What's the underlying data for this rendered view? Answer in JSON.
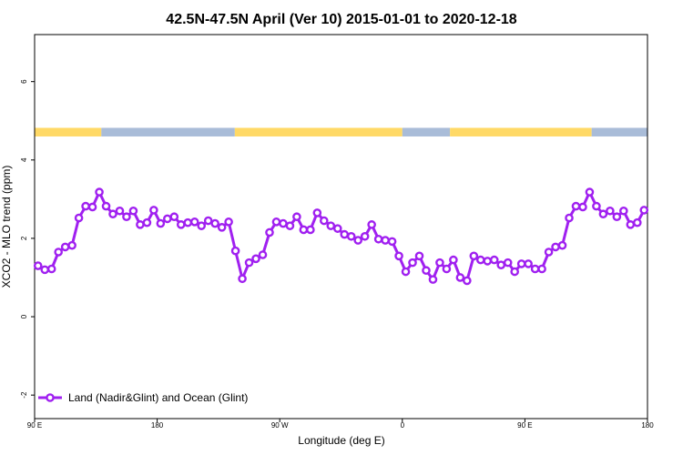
{
  "chart_data": {
    "type": "line",
    "title": "42.5N-47.5N April (Ver 10)   2015-01-01 to 2020-12-18",
    "xlabel": "Longitude (deg E)",
    "ylabel": "XCO2 - MLO trend (ppm)",
    "x_ticks": [
      {
        "value": 90,
        "label": "90 E"
      },
      {
        "value": 180,
        "label": "180"
      },
      {
        "value": 270,
        "label": "90 W"
      },
      {
        "value": 360,
        "label": "0"
      },
      {
        "value": 450,
        "label": "90 E"
      },
      {
        "value": 540,
        "label": "180"
      }
    ],
    "y_ticks": [
      {
        "value": -2,
        "label": "-2"
      },
      {
        "value": 0,
        "label": "0"
      },
      {
        "value": 2,
        "label": "2"
      },
      {
        "value": 4,
        "label": "4"
      },
      {
        "value": 6,
        "label": "6"
      }
    ],
    "xlim": [
      90,
      540
    ],
    "ylim": [
      -2.6,
      7.2
    ],
    "grid": false,
    "legend_position": "bottom-left",
    "series": [
      {
        "name": "Land (Nadir&Glint) and Ocean (Glint)",
        "color": "#A020F0",
        "x": [
          92.5,
          97.5,
          102.5,
          107.5,
          112.5,
          117.5,
          122.5,
          127.5,
          132.5,
          137.5,
          142.5,
          147.5,
          152.5,
          157.5,
          162.5,
          167.5,
          172.5,
          177.5,
          182.5,
          187.5,
          192.5,
          197.5,
          202.5,
          207.5,
          212.5,
          217.5,
          222.5,
          227.5,
          232.5,
          237.5,
          242.5,
          247.5,
          252.5,
          257.5,
          262.5,
          267.5,
          272.5,
          277.5,
          282.5,
          287.5,
          292.5,
          297.5,
          302.5,
          307.5,
          312.5,
          317.5,
          322.5,
          327.5,
          332.5,
          337.5,
          342.5,
          347.5,
          352.5,
          357.5,
          362.5,
          367.5,
          372.5,
          377.5,
          382.5,
          387.5,
          392.5,
          397.5,
          402.5,
          407.5,
          412.5,
          417.5,
          422.5,
          427.5,
          432.5,
          437.5,
          442.5,
          447.5,
          452.5,
          457.5,
          462.5,
          467.5,
          472.5,
          477.5,
          482.5,
          487.5,
          492.5,
          497.5,
          502.5,
          507.5,
          512.5,
          517.5,
          522.5,
          527.5,
          532.5,
          537.5
        ],
        "values": [
          1.3,
          1.2,
          1.22,
          1.65,
          1.78,
          1.82,
          2.52,
          2.82,
          2.8,
          3.18,
          2.82,
          2.62,
          2.7,
          2.55,
          2.7,
          2.35,
          2.4,
          2.72,
          2.38,
          2.5,
          2.55,
          2.35,
          2.4,
          2.42,
          2.32,
          2.45,
          2.38,
          2.28,
          2.42,
          1.68,
          0.97,
          1.38,
          1.48,
          1.58,
          2.15,
          2.42,
          2.38,
          2.32,
          2.55,
          2.22,
          2.22,
          2.65,
          2.45,
          2.32,
          2.25,
          2.1,
          2.05,
          1.95,
          2.05,
          2.35,
          1.98,
          1.95,
          1.92,
          1.55,
          1.15,
          1.38,
          1.55,
          1.18,
          0.95,
          1.38,
          1.22,
          1.45,
          1.0,
          0.92,
          1.55,
          1.45,
          1.42,
          1.45,
          1.32,
          1.38,
          1.15,
          1.35,
          1.35,
          1.22,
          1.22,
          1.65,
          1.78,
          1.82,
          2.52,
          2.82,
          2.8,
          3.18,
          2.82,
          2.62,
          2.7,
          2.55,
          2.7,
          2.35,
          2.4,
          2.72
        ]
      }
    ],
    "surface_band": {
      "y_range": [
        4.6,
        4.82
      ],
      "land_color": "#FFD966",
      "ocean_color": "#A9BCD8",
      "segments": [
        {
          "from": 90,
          "to": 139,
          "type": "land"
        },
        {
          "from": 139,
          "to": 237,
          "type": "ocean"
        },
        {
          "from": 237,
          "to": 360,
          "type": "land"
        },
        {
          "from": 360,
          "to": 395,
          "type": "ocean"
        },
        {
          "from": 395,
          "to": 499,
          "type": "land"
        },
        {
          "from": 499,
          "to": 540,
          "type": "ocean"
        }
      ]
    }
  }
}
